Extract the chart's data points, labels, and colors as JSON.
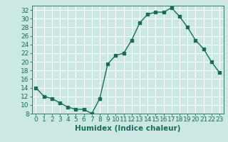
{
  "x": [
    0,
    1,
    2,
    3,
    4,
    5,
    6,
    7,
    8,
    9,
    10,
    11,
    12,
    13,
    14,
    15,
    16,
    17,
    18,
    19,
    20,
    21,
    22,
    23
  ],
  "y": [
    14,
    12,
    11.5,
    10.5,
    9.5,
    9,
    9,
    8,
    11.5,
    19.5,
    21.5,
    22,
    25,
    29,
    31,
    31.5,
    31.5,
    32.5,
    30.5,
    28,
    25,
    23,
    20,
    17.5
  ],
  "line_color": "#1a6b5a",
  "bg_color": "#cce8e4",
  "grid_color": "#ffffff",
  "xlabel": "Humidex (Indice chaleur)",
  "ylim": [
    8,
    33
  ],
  "xlim": [
    -0.5,
    23.5
  ],
  "yticks": [
    8,
    10,
    12,
    14,
    16,
    18,
    20,
    22,
    24,
    26,
    28,
    30,
    32
  ],
  "xticks": [
    0,
    1,
    2,
    3,
    4,
    5,
    6,
    7,
    8,
    9,
    10,
    11,
    12,
    13,
    14,
    15,
    16,
    17,
    18,
    19,
    20,
    21,
    22,
    23
  ],
  "xlabel_fontsize": 7.5,
  "tick_fontsize": 6.5,
  "marker_size": 2.8,
  "line_width": 1.0
}
